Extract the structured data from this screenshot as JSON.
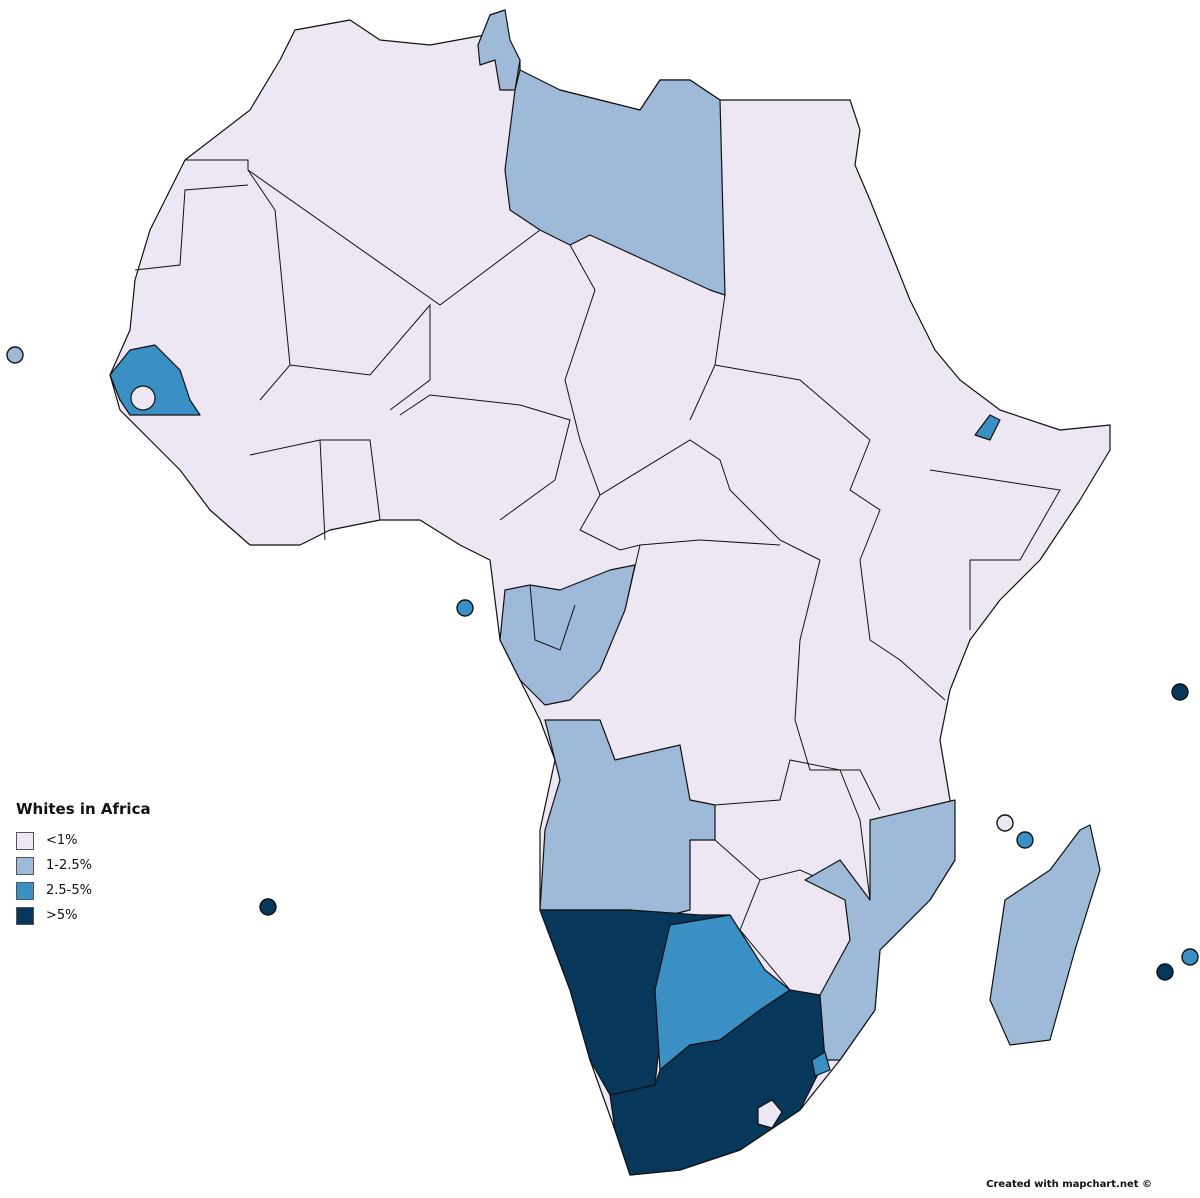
{
  "legend": {
    "title": "Whites in Africa",
    "items": [
      {
        "label": "<1%",
        "color": "#ede7f4"
      },
      {
        "label": "1-2.5%",
        "color": "#9fbad9"
      },
      {
        "label": "2.5-5%",
        "color": "#3a8fc4"
      },
      {
        "label": ">5%",
        "color": "#07385c"
      }
    ]
  },
  "credit": "Created with mapchart.net ©"
}
